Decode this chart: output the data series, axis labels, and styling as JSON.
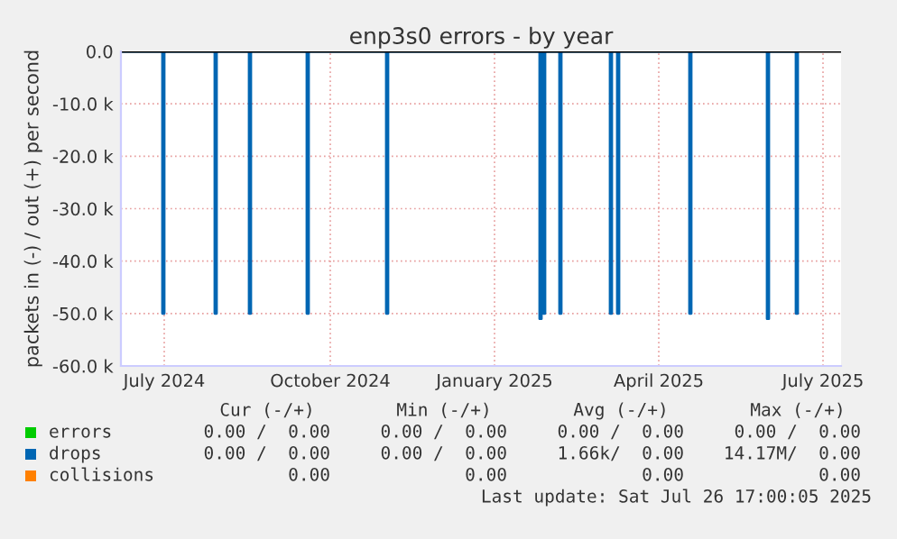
{
  "chart_data": {
    "type": "step",
    "title": "enp3s0 errors - by year",
    "ylabel": "packets in (-) / out (+) per second",
    "xlim": [
      "2024-06-22",
      "2025-07-26"
    ],
    "ylim": [
      -60000,
      0
    ],
    "yticks": [
      {
        "value": -60000,
        "label": "-60.0 k"
      },
      {
        "value": -50000,
        "label": "-50.0 k"
      },
      {
        "value": -40000,
        "label": "-40.0 k"
      },
      {
        "value": -30000,
        "label": "-30.0 k"
      },
      {
        "value": -20000,
        "label": "-20.0 k"
      },
      {
        "value": -10000,
        "label": "-10.0 k"
      },
      {
        "value": 0,
        "label": "0.0"
      }
    ],
    "xticks": [
      {
        "value": "2024-07-16",
        "label": "July 2024"
      },
      {
        "value": "2024-10-16",
        "label": "October 2024"
      },
      {
        "value": "2025-01-15",
        "label": "January 2025"
      },
      {
        "value": "2025-04-16",
        "label": "April 2025"
      },
      {
        "value": "2025-07-16",
        "label": "July 2025"
      }
    ],
    "grid": true,
    "legend": "bottom",
    "ref_lines": [
      {
        "axis": "y",
        "value": 0,
        "color": "#000000"
      }
    ],
    "series": [
      {
        "name": "errors",
        "color": "#00cc00"
      },
      {
        "name": "drops",
        "color": "#0066b3",
        "x": [
          "2024-06-22",
          "2024-07-15",
          "2024-07-16",
          "2024-08-13",
          "2024-08-14",
          "2024-09-01",
          "2024-09-02",
          "2024-10-03",
          "2024-10-04",
          "2024-11-16",
          "2024-11-17",
          "2025-02-09",
          "2025-02-10",
          "2025-02-11",
          "2025-02-12",
          "2025-02-20",
          "2025-02-21",
          "2025-03-20",
          "2025-03-21",
          "2025-03-24",
          "2025-03-25",
          "2025-05-03",
          "2025-05-04",
          "2025-06-15",
          "2025-06-16",
          "2025-07-01",
          "2025-07-02"
        ],
        "values": [
          0,
          -50000,
          0,
          -50000,
          0,
          -50000,
          0,
          -50000,
          0,
          -50000,
          0,
          -51000,
          0,
          -50000,
          0,
          -50000,
          0,
          -50000,
          0,
          -50000,
          0,
          -50000,
          0,
          -51000,
          0,
          -50000,
          0
        ]
      },
      {
        "name": "collisions",
        "color": "#ff8000"
      }
    ],
    "annotations": [
      "Cur (-/+)",
      "Min (-/+)",
      "Avg (-/+)",
      "Max (-/+)",
      "0.00 /  0.00",
      "0.00 /  0.00",
      "0.00 /  0.00",
      "0.00 /  0.00",
      "0.00 /  0.00",
      "0.00 /  0.00",
      "1.66k/  0.00",
      "14.17M/  0.00",
      "0.00",
      "0.00",
      "0.00",
      "0.00",
      "Last update: Sat Jul 26 17:00:05 2025"
    ]
  }
}
